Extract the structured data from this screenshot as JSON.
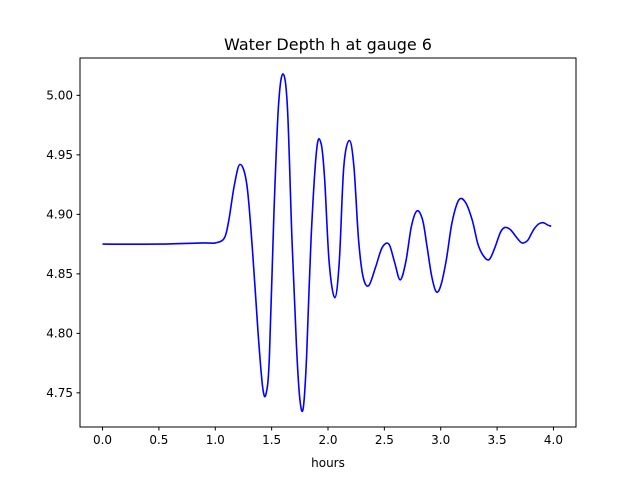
{
  "chart_data": {
    "type": "line",
    "title": "Water Depth h at gauge 6",
    "xlabel": "hours",
    "ylabel": "",
    "xlim": [
      -0.2,
      4.2
    ],
    "ylim": [
      4.7213,
      5.0314
    ],
    "x_ticks": [
      0.0,
      0.5,
      1.0,
      1.5,
      2.0,
      2.5,
      3.0,
      3.5,
      4.0
    ],
    "x_tick_labels": [
      "0.0",
      "0.5",
      "1.0",
      "1.5",
      "2.0",
      "2.5",
      "3.0",
      "3.5",
      "4.0"
    ],
    "y_ticks": [
      4.75,
      4.8,
      4.85,
      4.9,
      4.95,
      5.0
    ],
    "y_tick_labels": [
      "4.75",
      "4.80",
      "4.85",
      "4.90",
      "4.95",
      "5.00"
    ],
    "grid": false,
    "legend": "none",
    "series": [
      {
        "color": "#0000ff",
        "x": [
          0.0,
          0.5,
          0.9,
          1.0,
          1.08,
          1.12,
          1.17,
          1.22,
          1.28,
          1.33,
          1.38,
          1.42,
          1.45,
          1.48,
          1.52,
          1.56,
          1.6,
          1.64,
          1.68,
          1.72,
          1.75,
          1.78,
          1.81,
          1.85,
          1.9,
          1.94,
          1.97,
          2.01,
          2.06,
          2.1,
          2.14,
          2.19,
          2.23,
          2.27,
          2.31,
          2.36,
          2.42,
          2.48,
          2.54,
          2.59,
          2.64,
          2.69,
          2.74,
          2.79,
          2.84,
          2.88,
          2.92,
          2.96,
          3.0,
          3.05,
          3.1,
          3.16,
          3.22,
          3.28,
          3.33,
          3.38,
          3.43,
          3.48,
          3.53,
          3.57,
          3.62,
          3.67,
          3.72,
          3.77,
          3.8,
          3.83,
          3.87,
          3.91,
          3.95,
          3.98
        ],
        "y": [
          4.875,
          4.875,
          4.876,
          4.876,
          4.88,
          4.895,
          4.925,
          4.942,
          4.925,
          4.87,
          4.8,
          4.755,
          4.749,
          4.78,
          4.9,
          4.99,
          5.018,
          4.99,
          4.88,
          4.79,
          4.745,
          4.737,
          4.78,
          4.88,
          4.955,
          4.959,
          4.93,
          4.86,
          4.83,
          4.86,
          4.94,
          4.962,
          4.94,
          4.88,
          4.848,
          4.84,
          4.855,
          4.872,
          4.875,
          4.86,
          4.845,
          4.86,
          4.89,
          4.903,
          4.895,
          4.872,
          4.848,
          4.835,
          4.84,
          4.862,
          4.893,
          4.912,
          4.91,
          4.895,
          4.875,
          4.865,
          4.862,
          4.872,
          4.885,
          4.889,
          4.887,
          4.881,
          4.876,
          4.878,
          4.883,
          4.888,
          4.892,
          4.893,
          4.891,
          4.89
        ]
      }
    ]
  }
}
